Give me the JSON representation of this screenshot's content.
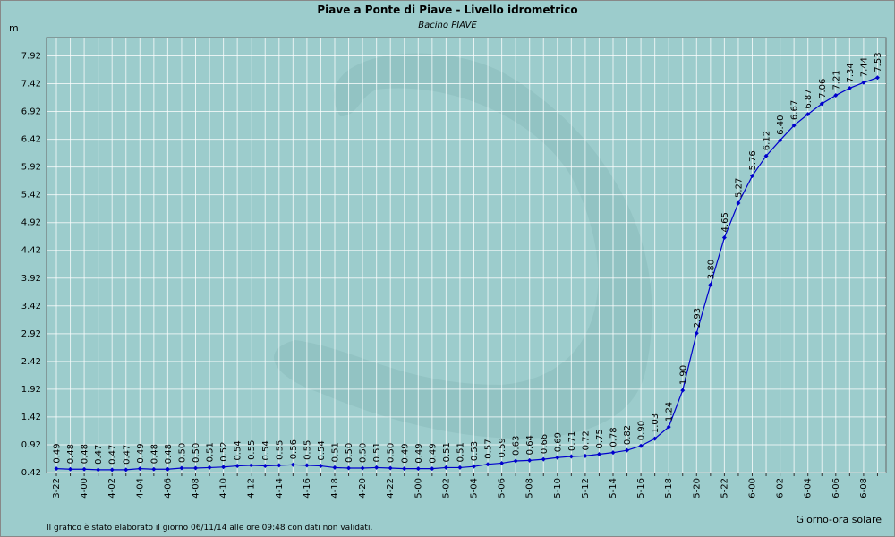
{
  "chart_data": {
    "type": "line",
    "title": "Piave a Ponte di Piave - Livello idrometrico",
    "subtitle": "Bacino PIAVE",
    "y_label": "m",
    "x_label": "Giorno-ora solare",
    "footnote": "Il grafico è stato elaborato il giorno 06/11/14 alle ore 09:48 con dati non validati.",
    "categories": [
      "3-22",
      null,
      "4-00",
      null,
      "4-02",
      null,
      "4-04",
      null,
      "4-06",
      null,
      "4-08",
      null,
      "4-10",
      null,
      "4-12",
      null,
      "4-14",
      null,
      "4-16",
      null,
      "4-18",
      null,
      "4-20",
      null,
      "4-22",
      null,
      "5-00",
      null,
      "5-02",
      null,
      "5-04",
      null,
      "5-06",
      null,
      "5-08",
      null,
      "5-10",
      null,
      "5-12",
      null,
      "5-14",
      null,
      "5-16",
      null,
      "5-18",
      null,
      "5-20",
      null,
      "5-22",
      null,
      "6-00",
      null,
      "6-02",
      null,
      "6-04",
      null,
      "6-06",
      null,
      "6-08",
      null
    ],
    "values": [
      0.49,
      0.48,
      0.48,
      0.47,
      0.47,
      0.47,
      0.49,
      0.48,
      0.48,
      0.5,
      0.5,
      0.51,
      0.52,
      0.54,
      0.55,
      0.54,
      0.55,
      0.56,
      0.55,
      0.54,
      0.51,
      0.5,
      0.5,
      0.51,
      0.5,
      0.49,
      0.49,
      0.49,
      0.51,
      0.51,
      0.53,
      0.57,
      0.59,
      0.63,
      0.64,
      0.66,
      0.69,
      0.71,
      0.72,
      0.75,
      0.78,
      0.82,
      0.9,
      1.03,
      1.24,
      1.9,
      2.93,
      3.8,
      4.65,
      5.27,
      5.76,
      6.12,
      6.4,
      6.67,
      6.87,
      7.06,
      7.21,
      7.34,
      7.44,
      7.53
    ],
    "value_labels": [
      "0.49",
      "0.48",
      "0.48",
      "0.47",
      "0.47",
      "0.47",
      "0.49",
      "0.48",
      "0.48",
      "0.50",
      "0.50",
      "0.51",
      "0.52",
      "0.54",
      "0.55",
      "0.54",
      "0.55",
      "0.56",
      "0.55",
      "0.54",
      "0.51",
      "0.50",
      "0.50",
      "0.51",
      "0.50",
      "0.49",
      "0.49",
      "0.49",
      "0.51",
      "0.51",
      "0.53",
      "0.57",
      "0.59",
      "0.63",
      "0.64",
      "0.66",
      "0.69",
      "0.71",
      "0.72",
      "0.75",
      "0.78",
      "0.82",
      "0.90",
      "1.03",
      "1.24",
      "1.90",
      "2.93",
      "3.80",
      "4.65",
      "5.27",
      "5.76",
      "6.12",
      "6.40",
      "6.67",
      "6.87",
      "7.06",
      "7.21",
      "7.34",
      "7.44",
      "7.53"
    ],
    "color": "#0000cc",
    "ylim": [
      0.42,
      8.25
    ],
    "yticks": [
      0.42,
      0.92,
      1.42,
      1.92,
      2.42,
      2.92,
      3.42,
      3.92,
      4.42,
      4.92,
      5.42,
      5.92,
      6.42,
      6.92,
      7.42,
      7.92
    ],
    "grid": true
  }
}
